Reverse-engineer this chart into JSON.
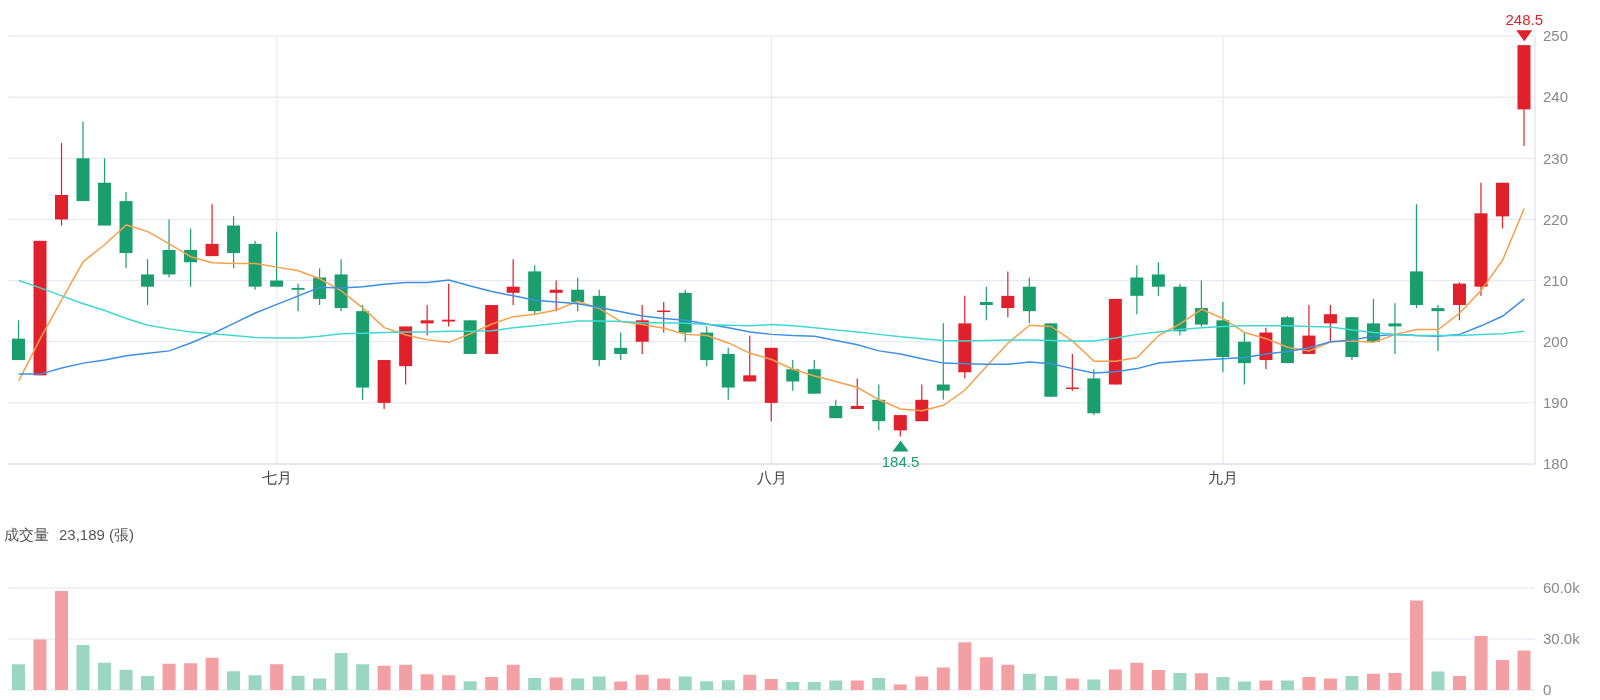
{
  "chart_data": [
    {
      "type": "candlestick",
      "categories": [
        null,
        null,
        null,
        null,
        null,
        null,
        null,
        null,
        null,
        null,
        null,
        null,
        "七月",
        null,
        null,
        null,
        null,
        null,
        null,
        null,
        null,
        null,
        null,
        null,
        null,
        null,
        null,
        null,
        null,
        null,
        null,
        null,
        null,
        null,
        null,
        "八月",
        null,
        null,
        null,
        null,
        null,
        null,
        null,
        null,
        null,
        null,
        null,
        null,
        null,
        null,
        null,
        null,
        null,
        null,
        null,
        null,
        "九月",
        null,
        null,
        null,
        null,
        null,
        null,
        null,
        null,
        null,
        null,
        null,
        null,
        null,
        null
      ],
      "ohlc": [
        [
          200.5,
          203.5,
          197,
          197
        ],
        [
          194.5,
          216.5,
          194.5,
          216.5
        ],
        [
          220,
          232.5,
          219,
          224
        ],
        [
          230,
          236,
          223,
          223
        ],
        [
          226,
          230,
          219,
          219
        ],
        [
          223,
          224.5,
          212,
          214.5
        ],
        [
          211,
          213.5,
          206,
          209
        ],
        [
          215,
          220,
          210.5,
          211
        ],
        [
          215,
          218.5,
          209,
          213
        ],
        [
          214,
          222.5,
          214,
          216
        ],
        [
          219,
          220.5,
          212,
          214.5
        ],
        [
          216,
          216.5,
          208.5,
          209
        ],
        [
          210,
          218,
          209,
          209
        ],
        [
          208.8,
          209.5,
          205,
          208.5
        ],
        [
          210.5,
          212,
          206,
          207
        ],
        [
          211,
          213.5,
          205,
          205.5
        ],
        [
          205,
          206,
          190.5,
          192.5
        ],
        [
          190,
          197,
          189,
          197
        ],
        [
          196,
          202.5,
          193,
          202.5
        ],
        [
          203,
          206,
          201,
          203.5
        ],
        [
          203.3,
          209.5,
          202.5,
          203.6
        ],
        [
          203.5,
          203.5,
          198,
          198
        ],
        [
          198,
          206,
          198,
          206
        ],
        [
          208,
          213.5,
          206,
          209
        ],
        [
          211.5,
          212.5,
          204.5,
          205
        ],
        [
          208,
          210,
          205,
          208.5
        ],
        [
          208.5,
          210.5,
          205,
          206.5
        ],
        [
          207.5,
          208.5,
          196,
          197
        ],
        [
          199,
          201.5,
          197,
          198
        ],
        [
          200,
          206,
          198,
          203.5
        ],
        [
          205,
          206.5,
          201.5,
          205.1
        ],
        [
          208,
          208.5,
          200,
          201.5
        ],
        [
          201.5,
          202.5,
          196,
          197
        ],
        [
          198,
          199,
          190.5,
          192.5
        ],
        [
          193.5,
          201,
          193.5,
          194.5
        ],
        [
          190,
          199,
          187,
          199
        ],
        [
          195.5,
          197,
          192,
          193.5
        ],
        [
          195.5,
          197,
          191.5,
          191.5
        ],
        [
          189.5,
          190.5,
          187.5,
          187.5
        ],
        [
          189,
          194,
          189,
          189.5
        ],
        [
          190.5,
          193,
          185.5,
          187
        ],
        [
          185.5,
          188,
          184.5,
          188
        ],
        [
          187,
          193,
          187,
          190.5
        ],
        [
          193,
          203,
          190.5,
          192
        ],
        [
          195,
          207.5,
          194,
          203
        ],
        [
          206.5,
          209,
          203.5,
          206
        ],
        [
          205.5,
          211.5,
          204,
          207.5
        ],
        [
          209,
          210.5,
          203,
          205
        ],
        [
          203,
          203,
          191,
          191
        ],
        [
          192.3,
          198,
          192,
          192.5
        ],
        [
          194,
          195.5,
          188,
          188.3
        ],
        [
          193,
          207,
          193,
          207
        ],
        [
          210.5,
          212.5,
          204.5,
          207.5
        ],
        [
          211,
          213,
          207.5,
          209
        ],
        [
          209,
          209.5,
          201,
          201.7
        ],
        [
          205.5,
          210,
          202.5,
          202.8
        ],
        [
          203.5,
          206.5,
          195,
          197.5
        ],
        [
          200,
          201.5,
          193,
          196.5
        ],
        [
          197,
          202.3,
          195.5,
          201.5
        ],
        [
          204,
          204.2,
          196.5,
          196.5
        ],
        [
          198,
          206,
          198,
          201
        ],
        [
          203,
          206,
          200,
          204.5
        ],
        [
          204,
          204,
          197,
          197.5
        ],
        [
          203,
          207,
          200,
          200
        ],
        [
          203,
          206.3,
          198,
          202.5
        ],
        [
          211.5,
          222.5,
          205.5,
          206
        ],
        [
          205.5,
          206,
          198.5,
          205
        ],
        [
          206,
          209.7,
          203.5,
          209.5
        ],
        [
          209,
          226,
          207.5,
          221
        ],
        [
          220.5,
          226,
          218.5,
          226
        ],
        [
          238,
          248.5,
          232,
          248.5
        ]
      ],
      "colors": [
        "#1a9e6e",
        "#e0202b",
        "#e0202b",
        "#1a9e6e",
        "#1a9e6e",
        "#1a9e6e",
        "#1a9e6e",
        "#1a9e6e",
        "#1a9e6e",
        "#e0202b",
        "#1a9e6e",
        "#1a9e6e",
        "#1a9e6e",
        "#1a9e6e",
        "#1a9e6e",
        "#1a9e6e",
        "#1a9e6e",
        "#e0202b",
        "#e0202b",
        "#e0202b",
        "#e0202b",
        "#1a9e6e",
        "#e0202b",
        "#e0202b",
        "#1a9e6e",
        "#e0202b",
        "#1a9e6e",
        "#1a9e6e",
        "#1a9e6e",
        "#e0202b",
        "#e0202b",
        "#1a9e6e",
        "#1a9e6e",
        "#1a9e6e",
        "#e0202b",
        "#e0202b",
        "#1a9e6e",
        "#1a9e6e",
        "#1a9e6e",
        "#e0202b",
        "#1a9e6e",
        "#e0202b",
        "#e0202b",
        "#1a9e6e",
        "#e0202b",
        "#1a9e6e",
        "#e0202b",
        "#1a9e6e",
        "#1a9e6e",
        "#e0202b",
        "#1a9e6e",
        "#e0202b",
        "#1a9e6e",
        "#1a9e6e",
        "#1a9e6e",
        "#1a9e6e",
        "#1a9e6e",
        "#1a9e6e",
        "#e0202b",
        "#1a9e6e",
        "#e0202b",
        "#e0202b",
        "#1a9e6e",
        "#1a9e6e",
        "#1a9e6e",
        "#1a9e6e",
        "#1a9e6e",
        "#e0202b",
        "#e0202b",
        "#e0202b",
        "#e0202b"
      ],
      "series": [
        {
          "type": "line",
          "color": "#f5a04a",
          "values": [
            193.6,
            200.5,
            206.9,
            213.1,
            215.9,
            219.1,
            218,
            216,
            213.9,
            212.9,
            212.8,
            212.8,
            212.2,
            211.6,
            210.3,
            208.3,
            205.5,
            202.3,
            201.1,
            200.3,
            199.9,
            201.3,
            202.9,
            204.1,
            204.5,
            205.2,
            206.6,
            205.4,
            203.3,
            202.8,
            202.2,
            201.2,
            201,
            199.8,
            198.1,
            197.1,
            195.5,
            194.4,
            193.5,
            192.5,
            190.5,
            189,
            188.7,
            189.6,
            192.1,
            196,
            199.8,
            202.7,
            202.5,
            200.1,
            196.8,
            196.8,
            197.4,
            201,
            202.9,
            205.3,
            203.8,
            201.5,
            200.5,
            199.1,
            198.5,
            200,
            200.1,
            199.9,
            201.2,
            202,
            202,
            204.7,
            208.4,
            213.4,
            221.8
          ]
        },
        {
          "type": "line",
          "color": "#3d8fe3",
          "values": [
            194.7,
            194.7,
            195.7,
            196.5,
            197,
            197.7,
            198.1,
            198.5,
            199.8,
            201.3,
            203,
            204.7,
            206.1,
            207.5,
            208.9,
            208.8,
            209,
            209.4,
            209.7,
            209.7,
            210.1,
            209.1,
            208.2,
            207.5,
            206.8,
            206.5,
            206.2,
            205.6,
            204.9,
            204.2,
            203.8,
            203.5,
            202.9,
            202.3,
            201.6,
            201.2,
            201,
            200.9,
            200.2,
            199.5,
            198.5,
            198,
            197.2,
            196.5,
            196.4,
            196.3,
            196.3,
            196.7,
            196.4,
            195.6,
            194.9,
            195.1,
            195.6,
            196.5,
            196.8,
            197,
            197.2,
            197.4,
            198,
            198.4,
            199,
            200,
            200.3,
            200.9,
            201.2,
            201,
            200.9,
            201.2,
            202.6,
            204.2,
            207
          ]
        },
        {
          "type": "line",
          "color": "#40d8d0",
          "values": [
            210,
            208.8,
            207.5,
            206.2,
            205.1,
            203.8,
            202.7,
            202.1,
            201.6,
            201.3,
            201,
            200.7,
            200.6,
            200.6,
            200.9,
            201.3,
            201.4,
            201.5,
            201.6,
            201.6,
            201.7,
            201.7,
            201.8,
            202.3,
            202.6,
            203,
            203.4,
            203.4,
            203.3,
            203.1,
            203.1,
            203,
            202.8,
            202.7,
            202.6,
            202.8,
            202.6,
            202.3,
            201.9,
            201.6,
            201.2,
            200.8,
            200.5,
            200.2,
            200.1,
            200.2,
            200.3,
            200.3,
            200.2,
            200.1,
            200.1,
            200.6,
            201.2,
            201.6,
            202,
            202.3,
            202.5,
            202.6,
            202.6,
            202.6,
            202.5,
            202.4,
            201.9,
            201.5,
            201.2,
            201,
            201,
            201,
            201.2,
            201.3,
            201.7
          ]
        }
      ],
      "ylim": [
        180,
        250
      ],
      "yticks": [
        180,
        190,
        200,
        210,
        220,
        230,
        240,
        250
      ],
      "grid": true,
      "marker": "none",
      "annotations": [
        {
          "text": "248.5",
          "y": 248.5
        },
        {
          "text": "184.5",
          "y": 184.5
        }
      ]
    },
    {
      "type": "bar",
      "title": "成交量",
      "subtitle": "23,189 (張)",
      "categories": [
        null,
        null,
        null,
        null,
        null,
        null,
        null,
        null,
        null,
        null,
        null,
        null,
        null,
        null,
        null,
        null,
        null,
        null,
        null,
        null,
        null,
        null,
        null,
        null,
        null,
        null,
        null,
        null,
        null,
        null,
        null,
        null,
        null,
        null,
        null,
        null,
        null,
        null,
        null,
        null,
        null,
        null,
        null,
        null,
        null,
        null,
        null,
        null,
        null,
        null,
        null,
        null,
        null,
        null,
        null,
        null,
        null,
        null,
        null,
        null,
        null,
        null,
        null,
        null,
        null,
        null,
        null,
        null,
        null,
        null,
        null
      ],
      "values": [
        15100,
        29700,
        58300,
        26500,
        16000,
        11900,
        8200,
        15400,
        15700,
        18900,
        11100,
        8700,
        15100,
        8400,
        6700,
        21800,
        15100,
        14300,
        14900,
        9300,
        8700,
        5200,
        7600,
        14900,
        7000,
        7300,
        6700,
        7900,
        5000,
        9000,
        6700,
        7900,
        5200,
        5800,
        9000,
        6400,
        4700,
        4700,
        5600,
        5600,
        7100,
        3300,
        8000,
        13300,
        28100,
        19200,
        14800,
        9500,
        8300,
        6800,
        6200,
        12100,
        16000,
        11800,
        10000,
        9800,
        7700,
        5000,
        5600,
        5600,
        7700,
        6800,
        8300,
        9500,
        10000,
        52600,
        10900,
        8300,
        31800,
        17700,
        23189
      ],
      "colors": [
        "#9ad6c2",
        "#f3a0a5",
        "#f3a0a5",
        "#9ad6c2",
        "#9ad6c2",
        "#9ad6c2",
        "#9ad6c2",
        "#f3a0a5",
        "#f3a0a5",
        "#f3a0a5",
        "#9ad6c2",
        "#9ad6c2",
        "#f3a0a5",
        "#9ad6c2",
        "#9ad6c2",
        "#9ad6c2",
        "#9ad6c2",
        "#f3a0a5",
        "#f3a0a5",
        "#f3a0a5",
        "#f3a0a5",
        "#9ad6c2",
        "#f3a0a5",
        "#f3a0a5",
        "#9ad6c2",
        "#f3a0a5",
        "#9ad6c2",
        "#9ad6c2",
        "#f3a0a5",
        "#f3a0a5",
        "#f3a0a5",
        "#9ad6c2",
        "#9ad6c2",
        "#9ad6c2",
        "#f3a0a5",
        "#f3a0a5",
        "#9ad6c2",
        "#9ad6c2",
        "#9ad6c2",
        "#f3a0a5",
        "#9ad6c2",
        "#f3a0a5",
        "#f3a0a5",
        "#f3a0a5",
        "#f3a0a5",
        "#f3a0a5",
        "#f3a0a5",
        "#9ad6c2",
        "#9ad6c2",
        "#f3a0a5",
        "#9ad6c2",
        "#f3a0a5",
        "#f3a0a5",
        "#f3a0a5",
        "#9ad6c2",
        "#f3a0a5",
        "#9ad6c2",
        "#9ad6c2",
        "#f3a0a5",
        "#9ad6c2",
        "#f3a0a5",
        "#f3a0a5",
        "#9ad6c2",
        "#f3a0a5",
        "#f3a0a5",
        "#f3a0a5",
        "#9ad6c2",
        "#f3a0a5",
        "#f3a0a5",
        "#f3a0a5",
        "#f3a0a5"
      ],
      "ylim": [
        0,
        60000
      ],
      "yticks": [
        0,
        {
          "value": 30000,
          "label": "30.0k"
        },
        {
          "value": 60000,
          "label": "60.0k"
        }
      ],
      "grid": "y",
      "tick_labels": "y"
    }
  ]
}
